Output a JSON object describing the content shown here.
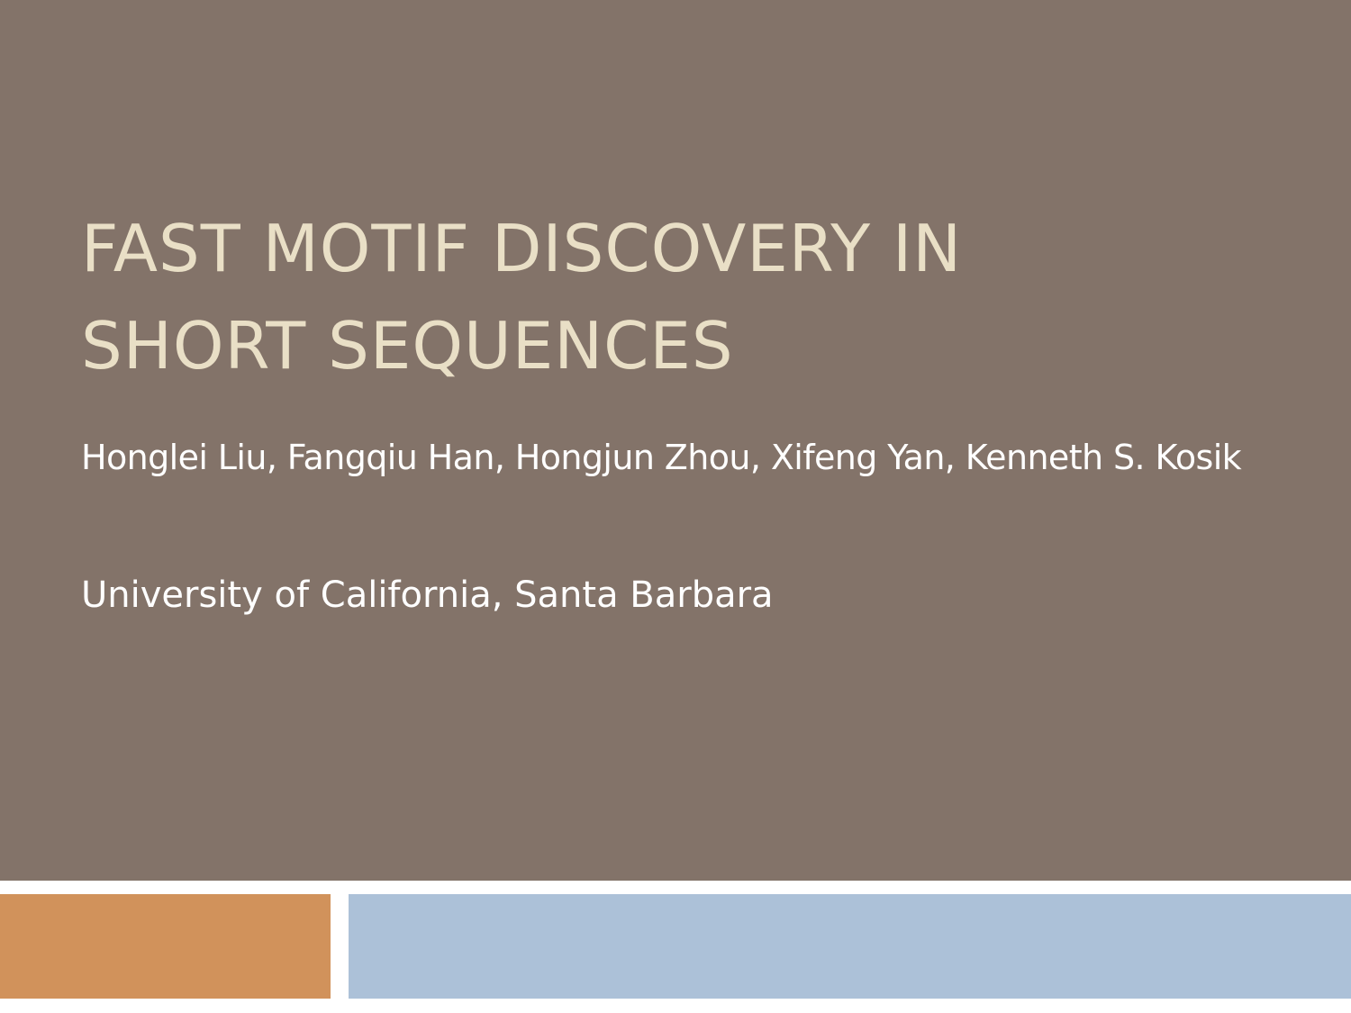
{
  "slide": {
    "title_lines": [
      "FAST MOTIF DISCOVERY IN",
      "SHORT SEQUENCES"
    ],
    "authors": "Honglei Liu, Fangqiu Han, Hongjun Zhou, Xifeng Yan, Kenneth S. Kosik",
    "affiliation": "University of California, Santa Barbara"
  },
  "colors": {
    "title_panel": "#837369",
    "title_text": "#e9dfc6",
    "body_text": "#ffffff",
    "accent_orange": "#d1925b",
    "accent_blue": "#acc1d8"
  }
}
